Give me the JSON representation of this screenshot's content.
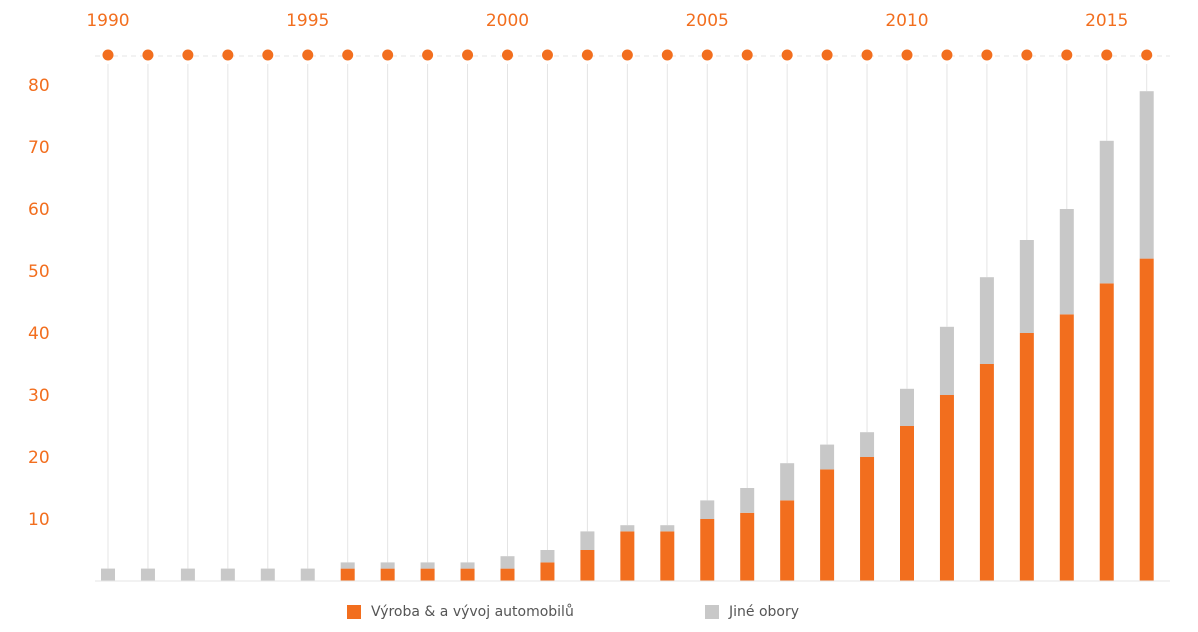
{
  "chart_data": {
    "type": "bar",
    "stacked": true,
    "x": [
      1990,
      1991,
      1992,
      1993,
      1994,
      1995,
      1996,
      1997,
      1998,
      1999,
      2000,
      2001,
      2002,
      2003,
      2004,
      2005,
      2006,
      2007,
      2008,
      2009,
      2010,
      2011,
      2012,
      2013,
      2014,
      2015,
      2016
    ],
    "x_tick_labels": [
      "1990",
      "1995",
      "2000",
      "2005",
      "2010",
      "2015"
    ],
    "y_tick_labels": [
      "10",
      "20",
      "30",
      "40",
      "50",
      "60",
      "70",
      "80"
    ],
    "ylim": [
      0,
      85
    ],
    "series": [
      {
        "name": "Výroba & a vývoj automobilů",
        "color": "#f26e1e",
        "values": [
          0,
          0,
          0,
          0,
          0,
          0,
          2,
          2,
          2,
          2,
          2,
          3,
          5,
          8,
          8,
          10,
          11,
          13,
          18,
          20,
          25,
          30,
          35,
          40,
          43,
          48,
          52
        ]
      },
      {
        "name": "Jiné obory",
        "color": "#c8c8c8",
        "values": [
          2,
          2,
          2,
          2,
          2,
          2,
          1,
          1,
          1,
          1,
          2,
          2,
          3,
          1,
          1,
          3,
          4,
          6,
          4,
          4,
          6,
          11,
          14,
          15,
          17,
          23,
          27
        ]
      }
    ],
    "legend_position": "bottom-center",
    "grid": "vertical lines per year",
    "colors": {
      "axis_text": "#f26e1e",
      "gridline": "#e4e4e4",
      "marker": "#f26e1e"
    }
  }
}
